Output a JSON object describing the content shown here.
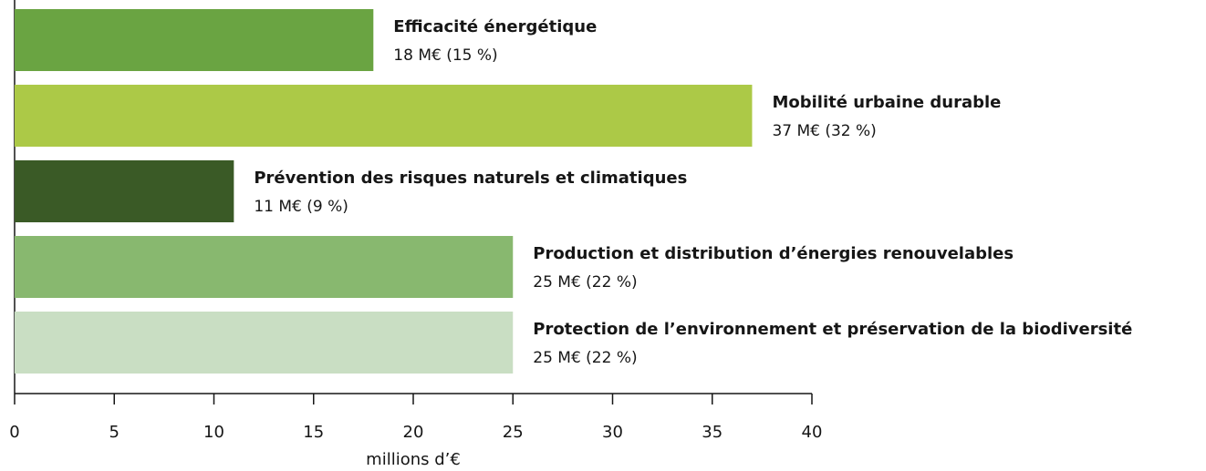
{
  "chart_data": {
    "type": "bar",
    "orientation": "horizontal",
    "categories": [
      "Efficacité énergétique",
      "Mobilité urbaine durable",
      "Prévention des risques naturels et climatiques",
      "Production et distribution d’énergies renouvelables",
      "Protection de l’environnement et préservation de la biodiversité"
    ],
    "values": [
      18,
      37,
      11,
      25,
      25
    ],
    "value_labels": [
      "18 M€ (15 %)",
      "37 M€ (32 %)",
      "11 M€ (9 %)",
      "25 M€ (22 %)",
      "25 M€ (22 %)"
    ],
    "colors": [
      "#6aa442",
      "#acc947",
      "#3a5a26",
      "#88b86f",
      "#c9dec3"
    ],
    "xlim": [
      0,
      40
    ],
    "xticks": [
      0,
      5,
      10,
      15,
      20,
      25,
      30,
      35,
      40
    ],
    "xlabel": "millions d’€"
  }
}
